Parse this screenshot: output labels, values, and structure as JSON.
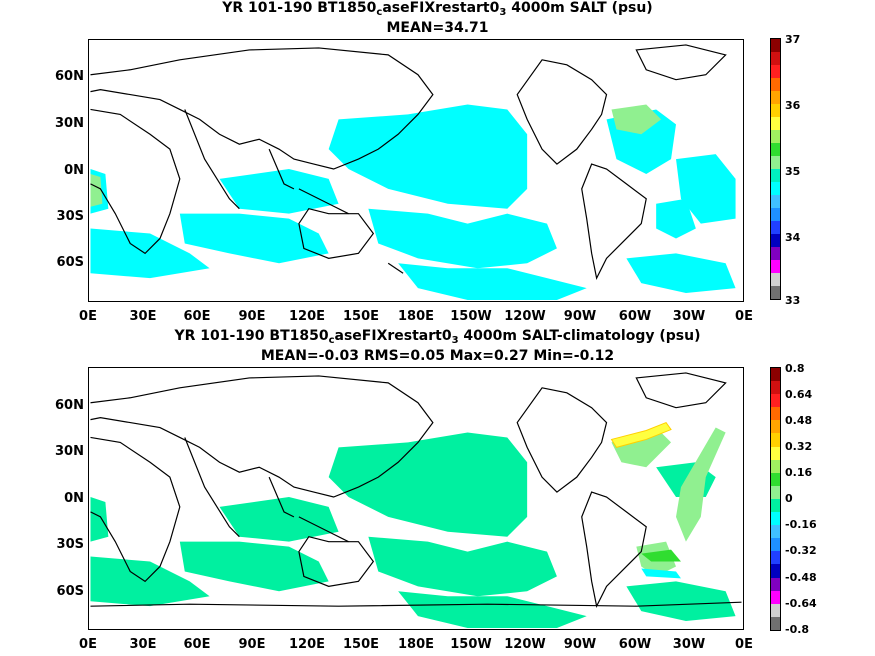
{
  "maps": [
    {
      "title_prefix": "YR 101-190 BT1850",
      "title_sub1": "c",
      "title_mid": "aseFIXrestart0",
      "title_sub2": "3",
      "title_suffix": " 4000m SALT (psu)",
      "stats": "MEAN=34.71",
      "colorbar_labels": [
        "37",
        "36",
        "35",
        "34",
        "33"
      ],
      "colorbar_colors": [
        "#8b0000",
        "#d01010",
        "#ff2020",
        "#ff6a00",
        "#ffa500",
        "#ffd000",
        "#ffff40",
        "#a0f060",
        "#30dd30",
        "#90f090",
        "#00f0c0",
        "#00ffff",
        "#40c0ff",
        "#1e90ff",
        "#2040ff",
        "#0000c0",
        "#8000c0",
        "#ff00ff",
        "#d0d0d0",
        "#707070"
      ],
      "fill_main": "#00ffff",
      "fill_secondary": "#90f090"
    },
    {
      "title_prefix": "YR 101-190 BT1850",
      "title_sub1": "c",
      "title_mid": "aseFIXrestart0",
      "title_sub2": "3",
      "title_suffix": " 4000m SALT-climatology (psu)",
      "stats": "MEAN=-0.03   RMS=0.05   Max=0.27   Min=-0.12",
      "colorbar_labels": [
        "0.8",
        "0.64",
        "0.48",
        "0.32",
        "0.16",
        "0",
        "-0.16",
        "-0.32",
        "-0.48",
        "-0.64",
        "-0.8"
      ],
      "colorbar_colors": [
        "#8b0000",
        "#d01010",
        "#ff2020",
        "#ff6a00",
        "#ffa500",
        "#ffd000",
        "#ffff40",
        "#a0f060",
        "#30dd30",
        "#90f090",
        "#00f0a0",
        "#00ffff",
        "#40c0ff",
        "#1e90ff",
        "#2040ff",
        "#0000c0",
        "#8000c0",
        "#ff00ff",
        "#d0d0d0",
        "#707070"
      ],
      "fill_main": "#00f0a0",
      "fill_secondary": "#90f090"
    }
  ],
  "lat_labels": [
    "60N",
    "30N",
    "0N",
    "30S",
    "60S"
  ],
  "lon_labels": [
    "0E",
    "30E",
    "60E",
    "90E",
    "120E",
    "150E",
    "180E",
    "150W",
    "120W",
    "90W",
    "60W",
    "30W",
    "0E"
  ]
}
